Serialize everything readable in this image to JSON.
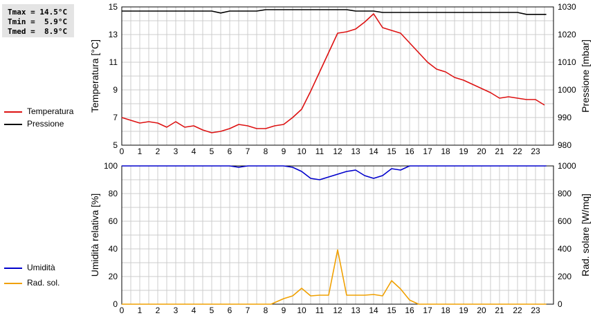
{
  "stats": {
    "tmax": "Tmax = 14.5°C",
    "tmin": "Tmin =  5.9°C",
    "tmed": "Tmed =  8.9°C"
  },
  "colors": {
    "temperature": "#dd1111",
    "pressure": "#000000",
    "humidity": "#0000cc",
    "radiation": "#f0a000",
    "grid": "#cccccc",
    "stats_bg": "#e4e4e4"
  },
  "chart_data": [
    {
      "type": "line",
      "legend_placement": "left",
      "grid": true,
      "xlim": [
        0,
        24
      ],
      "x_ticks": [
        "0",
        "1",
        "2",
        "3",
        "4",
        "5",
        "6",
        "7",
        "8",
        "9",
        "10",
        "11",
        "12",
        "13",
        "14",
        "15",
        "16",
        "17",
        "18",
        "19",
        "20",
        "21",
        "22",
        "23"
      ],
      "ylabel": "Temperatura [°C]",
      "ylim": [
        5,
        15
      ],
      "y_ticks": [
        "5",
        "7",
        "9",
        "11",
        "13",
        "15"
      ],
      "y2label": "Pressione [mbar]",
      "y2lim": [
        980,
        1030
      ],
      "y2_ticks": [
        "980",
        "990",
        "1000",
        "1010",
        "1020",
        "1030"
      ],
      "series": [
        {
          "name": "Temperatura",
          "axis": "left",
          "x": [
            0,
            0.5,
            1,
            1.5,
            2,
            2.5,
            3,
            3.5,
            4,
            4.5,
            5,
            5.5,
            6,
            6.5,
            7,
            7.5,
            8,
            8.5,
            9,
            9.5,
            10,
            10.5,
            11,
            11.5,
            12,
            12.5,
            13,
            13.5,
            14,
            14.5,
            15,
            15.5,
            16,
            16.5,
            17,
            17.5,
            18,
            18.5,
            19,
            19.5,
            20,
            20.5,
            21,
            21.5,
            22,
            22.5,
            23,
            23.5
          ],
          "values": [
            7.0,
            6.8,
            6.6,
            6.7,
            6.6,
            6.3,
            6.7,
            6.3,
            6.4,
            6.1,
            5.9,
            6.0,
            6.2,
            6.5,
            6.4,
            6.2,
            6.2,
            6.4,
            6.5,
            7.0,
            7.6,
            8.9,
            10.3,
            11.7,
            13.1,
            13.2,
            13.4,
            13.9,
            14.5,
            13.5,
            13.3,
            13.1,
            12.4,
            11.7,
            11.0,
            10.5,
            10.3,
            9.9,
            9.7,
            9.4,
            9.1,
            8.8,
            8.4,
            8.5,
            8.4,
            8.3,
            8.3,
            7.9
          ]
        },
        {
          "name": "Pressione",
          "axis": "right",
          "x": [
            0,
            1,
            2,
            3,
            4,
            5,
            5.5,
            6,
            7,
            7.5,
            8,
            9,
            10,
            11,
            12,
            12.5,
            13,
            14,
            14.5,
            15,
            16,
            17,
            18,
            19,
            20,
            21,
            22,
            22.5,
            23,
            23.6
          ],
          "values": [
            1028.5,
            1028.5,
            1028.5,
            1028.5,
            1028.5,
            1028.5,
            1027.8,
            1028.5,
            1028.5,
            1028.5,
            1029,
            1029,
            1029,
            1029,
            1029,
            1029,
            1028.5,
            1028.5,
            1028,
            1028,
            1028,
            1028,
            1028,
            1028,
            1028,
            1028,
            1028,
            1027.3,
            1027.3,
            1027.3
          ]
        }
      ]
    },
    {
      "type": "line",
      "legend_placement": "left",
      "grid": true,
      "xlim": [
        0,
        24
      ],
      "x_ticks": [
        "0",
        "1",
        "2",
        "3",
        "4",
        "5",
        "6",
        "7",
        "8",
        "9",
        "10",
        "11",
        "12",
        "13",
        "14",
        "15",
        "16",
        "17",
        "18",
        "19",
        "20",
        "21",
        "22",
        "23"
      ],
      "ylabel": "Umidità relativa [%]",
      "ylim": [
        0,
        100
      ],
      "y_ticks": [
        "0",
        "20",
        "40",
        "60",
        "80",
        "100"
      ],
      "y2label": "Rad. solare [W/mq]",
      "y2lim": [
        0,
        1000
      ],
      "y2_ticks": [
        "0",
        "200",
        "400",
        "600",
        "800",
        "1000"
      ],
      "series": [
        {
          "name": "Umidità",
          "axis": "left",
          "x": [
            0,
            1,
            2,
            3,
            4,
            5,
            6,
            6.5,
            7,
            8,
            9,
            9.5,
            10,
            10.5,
            11,
            11.5,
            12,
            12.5,
            13,
            13.5,
            14,
            14.5,
            15,
            15.5,
            16,
            17,
            18,
            19,
            20,
            21,
            22,
            23,
            23.6
          ],
          "values": [
            100,
            100,
            100,
            100,
            100,
            100,
            100,
            99,
            100,
            100,
            100,
            99,
            96,
            91,
            90,
            92,
            94,
            96,
            97,
            93,
            91,
            93,
            98,
            97,
            100,
            100,
            100,
            100,
            100,
            100,
            100,
            100,
            100
          ]
        },
        {
          "name": "Rad. sol.",
          "axis": "right",
          "x": [
            0,
            1,
            2,
            3,
            4,
            5,
            6,
            7,
            8,
            8.3,
            9,
            9.5,
            10,
            10.5,
            11,
            11.5,
            12,
            12.5,
            13,
            13.5,
            14,
            14.5,
            15,
            15.5,
            16,
            16.5,
            17,
            18,
            19,
            20,
            21,
            22,
            23,
            23.6
          ],
          "values": [
            0,
            0,
            0,
            0,
            0,
            0,
            0,
            0,
            0,
            0,
            40,
            60,
            115,
            60,
            65,
            65,
            393,
            65,
            65,
            65,
            70,
            60,
            170,
            110,
            30,
            0,
            0,
            0,
            0,
            0,
            0,
            0,
            0,
            0
          ]
        }
      ]
    }
  ]
}
